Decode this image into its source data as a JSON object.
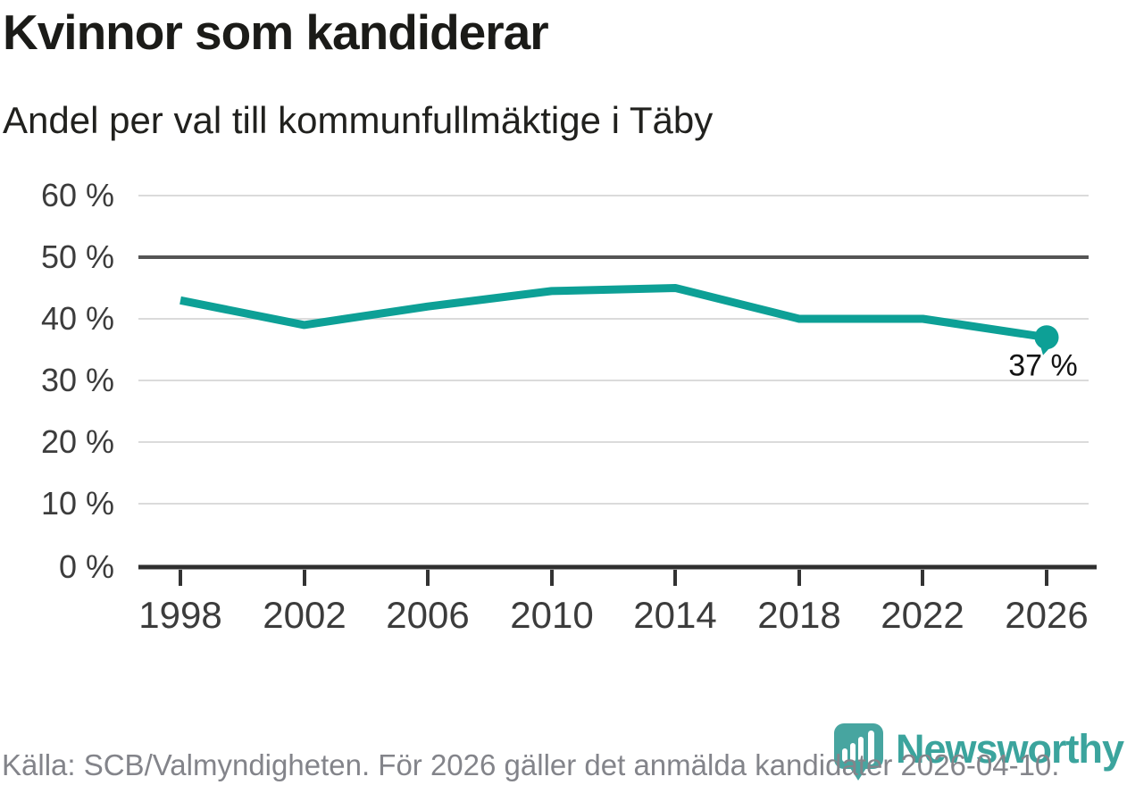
{
  "header": {
    "title": "Kvinnor som kandiderar",
    "subtitle": "Andel per val till kommunfullmäktige i Täby"
  },
  "chart_data": {
    "type": "line",
    "title": "Kvinnor som kandiderar",
    "subtitle": "Andel per val till kommunfullmäktige i Täby",
    "categories": [
      "1998",
      "2002",
      "2006",
      "2010",
      "2014",
      "2018",
      "2022",
      "2026"
    ],
    "values": [
      43,
      39,
      42,
      44.5,
      45,
      40,
      40,
      37
    ],
    "unit": "%",
    "ylim": [
      0,
      60
    ],
    "ytick_step": 10,
    "ytick_labels": [
      "60 %",
      "50 %",
      "40 %",
      "30 %",
      "20 %",
      "10 %",
      "0 %"
    ],
    "grid": "horizontal",
    "emphasized_gridline": "50 %",
    "line_color": "#0DA096",
    "end_point": {
      "category": "2026",
      "value": 37,
      "label": "37 %"
    }
  },
  "footer": {
    "source": "Källa: SCB/Valmyndigheten. För 2026 gäller det anmälda kandidater 2026-04-10.",
    "brand": "Newsworthy",
    "brand_color": "#3BA49D",
    "pin_color": "#47A5A0"
  }
}
